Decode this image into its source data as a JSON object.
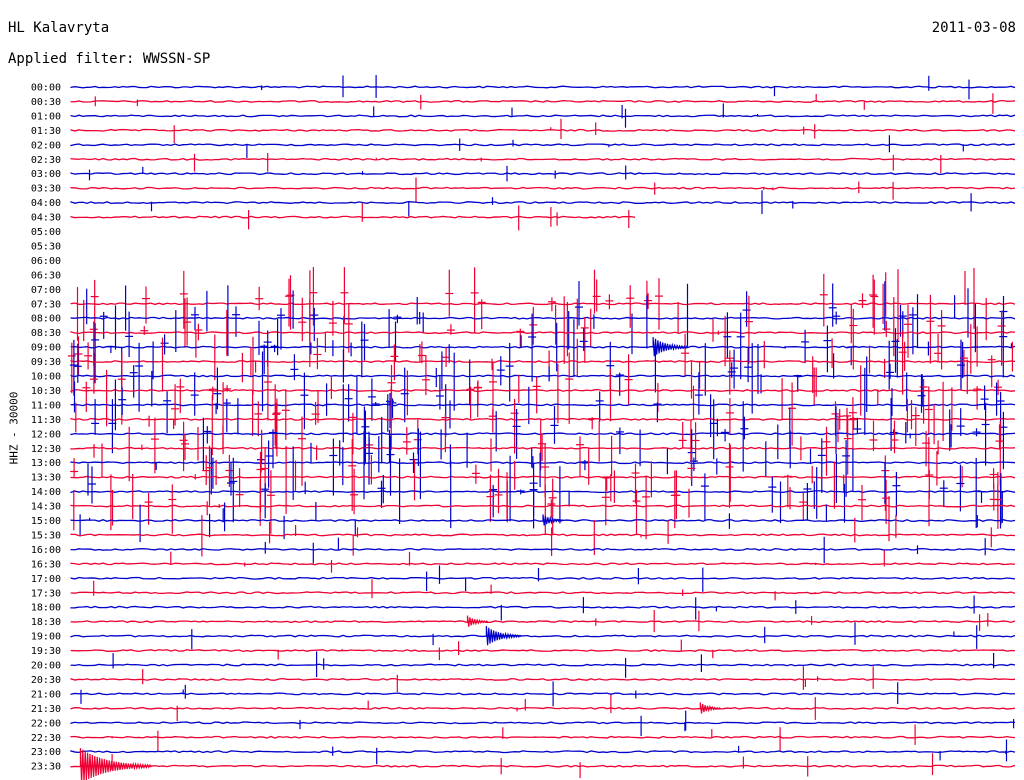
{
  "header": {
    "station": "HL Kalavryta",
    "date": "2011-03-08",
    "filter": "Applied filter: WWSSN-SP"
  },
  "chart_data": {
    "type": "line",
    "title": "HL Kalavryta",
    "ylabel": "HHZ - 30000",
    "colors": {
      "odd": "#0000cc",
      "even": "#ee0033"
    },
    "rows": [
      {
        "label": "00:00",
        "present": true,
        "coverage": 1.0,
        "activity": "low"
      },
      {
        "label": "00:30",
        "present": true,
        "coverage": 1.0,
        "activity": "low"
      },
      {
        "label": "01:00",
        "present": true,
        "coverage": 1.0,
        "activity": "low"
      },
      {
        "label": "01:30",
        "present": true,
        "coverage": 1.0,
        "activity": "low"
      },
      {
        "label": "02:00",
        "present": true,
        "coverage": 1.0,
        "activity": "low"
      },
      {
        "label": "02:30",
        "present": true,
        "coverage": 1.0,
        "activity": "low"
      },
      {
        "label": "03:00",
        "present": true,
        "coverage": 1.0,
        "activity": "low"
      },
      {
        "label": "03:30",
        "present": true,
        "coverage": 1.0,
        "activity": "low"
      },
      {
        "label": "04:00",
        "present": true,
        "coverage": 1.0,
        "activity": "low"
      },
      {
        "label": "04:30",
        "present": true,
        "coverage": 0.6,
        "activity": "low"
      },
      {
        "label": "05:00",
        "present": false,
        "coverage": 0,
        "activity": "none"
      },
      {
        "label": "05:30",
        "present": false,
        "coverage": 0,
        "activity": "none"
      },
      {
        "label": "06:00",
        "present": false,
        "coverage": 0,
        "activity": "none"
      },
      {
        "label": "06:30",
        "present": false,
        "coverage": 0,
        "activity": "none"
      },
      {
        "label": "07:00",
        "present": false,
        "coverage": 0,
        "activity": "none"
      },
      {
        "label": "07:30",
        "present": true,
        "coverage": 1.0,
        "activity": "high"
      },
      {
        "label": "08:00",
        "present": true,
        "coverage": 1.0,
        "activity": "high"
      },
      {
        "label": "08:30",
        "present": true,
        "coverage": 1.0,
        "activity": "high"
      },
      {
        "label": "09:00",
        "present": true,
        "coverage": 1.0,
        "activity": "high"
      },
      {
        "label": "09:30",
        "present": true,
        "coverage": 1.0,
        "activity": "high"
      },
      {
        "label": "10:00",
        "present": true,
        "coverage": 1.0,
        "activity": "high"
      },
      {
        "label": "10:30",
        "present": true,
        "coverage": 1.0,
        "activity": "high"
      },
      {
        "label": "11:00",
        "present": true,
        "coverage": 1.0,
        "activity": "high"
      },
      {
        "label": "11:30",
        "present": true,
        "coverage": 1.0,
        "activity": "high"
      },
      {
        "label": "12:00",
        "present": true,
        "coverage": 1.0,
        "activity": "high"
      },
      {
        "label": "12:30",
        "present": true,
        "coverage": 1.0,
        "activity": "high"
      },
      {
        "label": "13:00",
        "present": true,
        "coverage": 1.0,
        "activity": "high"
      },
      {
        "label": "13:30",
        "present": true,
        "coverage": 1.0,
        "activity": "high"
      },
      {
        "label": "14:00",
        "present": true,
        "coverage": 1.0,
        "activity": "high"
      },
      {
        "label": "14:30",
        "present": true,
        "coverage": 1.0,
        "activity": "high"
      },
      {
        "label": "15:00",
        "present": true,
        "coverage": 1.0,
        "activity": "medium"
      },
      {
        "label": "15:30",
        "present": true,
        "coverage": 1.0,
        "activity": "medium"
      },
      {
        "label": "16:00",
        "present": true,
        "coverage": 1.0,
        "activity": "low"
      },
      {
        "label": "16:30",
        "present": true,
        "coverage": 1.0,
        "activity": "low"
      },
      {
        "label": "17:00",
        "present": true,
        "coverage": 1.0,
        "activity": "low"
      },
      {
        "label": "17:30",
        "present": true,
        "coverage": 1.0,
        "activity": "low"
      },
      {
        "label": "18:00",
        "present": true,
        "coverage": 1.0,
        "activity": "low"
      },
      {
        "label": "18:30",
        "present": true,
        "coverage": 1.0,
        "activity": "low"
      },
      {
        "label": "19:00",
        "present": true,
        "coverage": 1.0,
        "activity": "low"
      },
      {
        "label": "19:30",
        "present": true,
        "coverage": 1.0,
        "activity": "low"
      },
      {
        "label": "20:00",
        "present": true,
        "coverage": 1.0,
        "activity": "low"
      },
      {
        "label": "20:30",
        "present": true,
        "coverage": 1.0,
        "activity": "low"
      },
      {
        "label": "21:00",
        "present": true,
        "coverage": 1.0,
        "activity": "low"
      },
      {
        "label": "21:30",
        "present": true,
        "coverage": 1.0,
        "activity": "low"
      },
      {
        "label": "22:00",
        "present": true,
        "coverage": 1.0,
        "activity": "low"
      },
      {
        "label": "22:30",
        "present": true,
        "coverage": 1.0,
        "activity": "low"
      },
      {
        "label": "23:00",
        "present": true,
        "coverage": 1.0,
        "activity": "low"
      },
      {
        "label": "23:30",
        "present": true,
        "coverage": 1.0,
        "activity": "low"
      }
    ],
    "events": [
      {
        "row": "09:00",
        "at_min": 18.5,
        "size": "medium"
      },
      {
        "row": "15:00",
        "at_min": 15.0,
        "size": "small"
      },
      {
        "row": "18:30",
        "at_min": 12.6,
        "size": "small"
      },
      {
        "row": "19:00",
        "at_min": 13.2,
        "size": "medium"
      },
      {
        "row": "21:30",
        "at_min": 20.0,
        "size": "small"
      },
      {
        "row": "23:30",
        "at_min": 0.3,
        "size": "large"
      }
    ]
  }
}
